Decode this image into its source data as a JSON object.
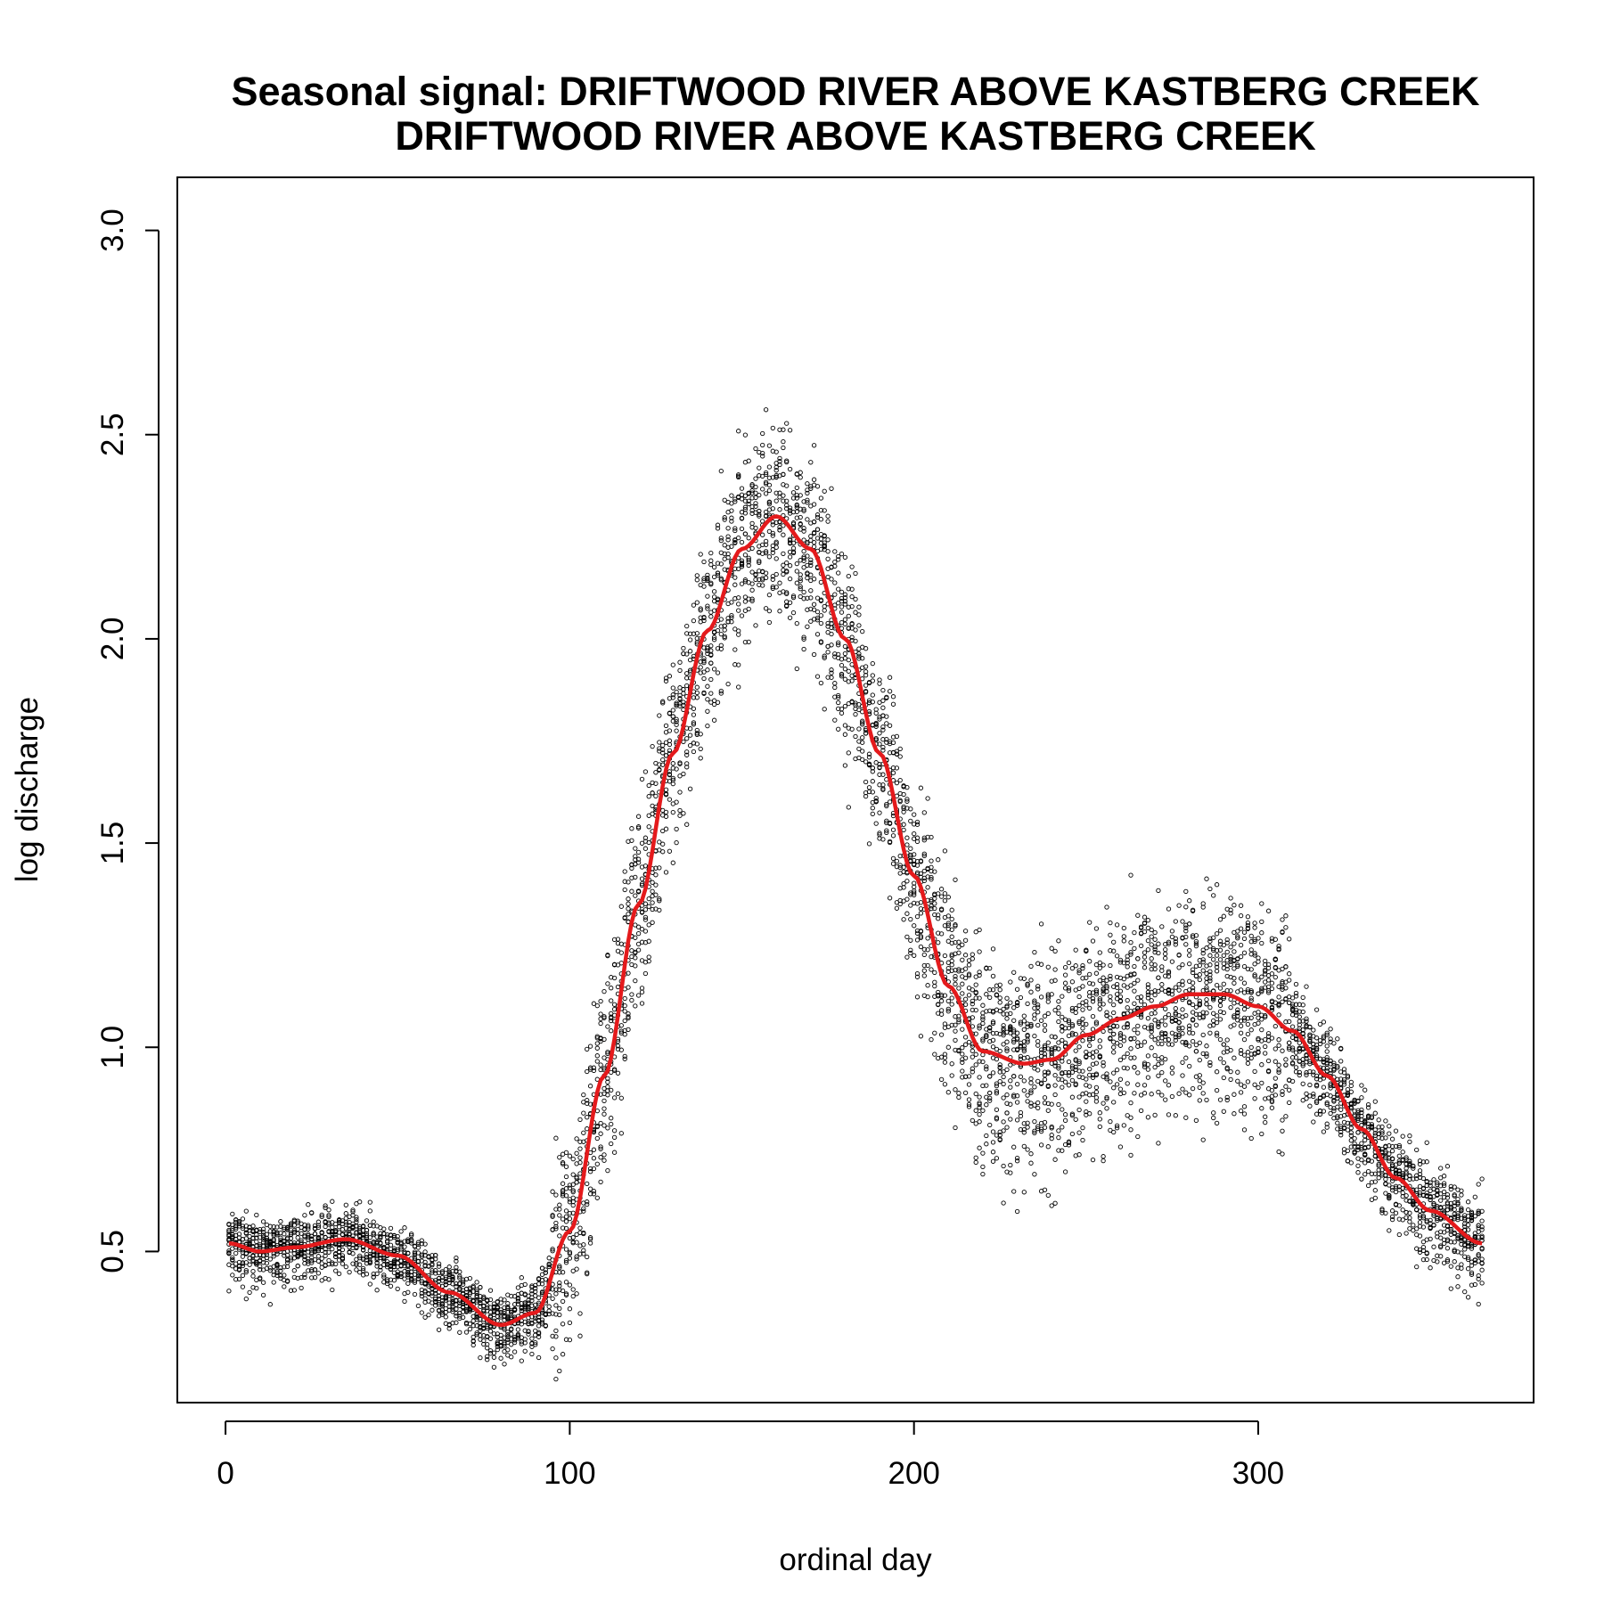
{
  "chart_data": {
    "type": "scatter",
    "title": "Seasonal signal: DRIFTWOOD RIVER ABOVE KASTBERG CREEK",
    "subtitle": "DRIFTWOOD RIVER ABOVE KASTBERG CREEK",
    "xlabel": "ordinal day",
    "ylabel": "log discharge",
    "xlim": [
      -14,
      380
    ],
    "ylim": [
      0.13,
      3.13
    ],
    "xticks": [
      0,
      100,
      200,
      300
    ],
    "yticks": [
      0.5,
      1.0,
      1.5,
      2.0,
      2.5,
      3.0
    ],
    "xtick_labels": [
      "0",
      "100",
      "200",
      "300"
    ],
    "ytick_labels": [
      "0.5",
      "1.0",
      "1.5",
      "2.0",
      "2.5",
      "3.0"
    ],
    "grid": false,
    "point_style": "open circle",
    "point_color": "#000000",
    "point_x_range": [
      1,
      365
    ],
    "smooth_curve": {
      "color": "#e41a1c",
      "x": [
        1,
        10,
        20,
        35,
        50,
        65,
        80,
        90,
        100,
        110,
        120,
        130,
        140,
        150,
        160,
        170,
        180,
        190,
        200,
        210,
        220,
        232,
        240,
        250,
        260,
        270,
        280,
        290,
        300,
        310,
        320,
        330,
        340,
        350,
        365
      ],
      "y": [
        0.52,
        0.5,
        0.51,
        0.53,
        0.49,
        0.4,
        0.32,
        0.35,
        0.55,
        0.93,
        1.35,
        1.72,
        2.02,
        2.22,
        2.3,
        2.22,
        2.0,
        1.72,
        1.42,
        1.15,
        0.99,
        0.96,
        0.97,
        1.03,
        1.07,
        1.1,
        1.13,
        1.13,
        1.1,
        1.04,
        0.93,
        0.8,
        0.68,
        0.6,
        0.52
      ]
    }
  }
}
